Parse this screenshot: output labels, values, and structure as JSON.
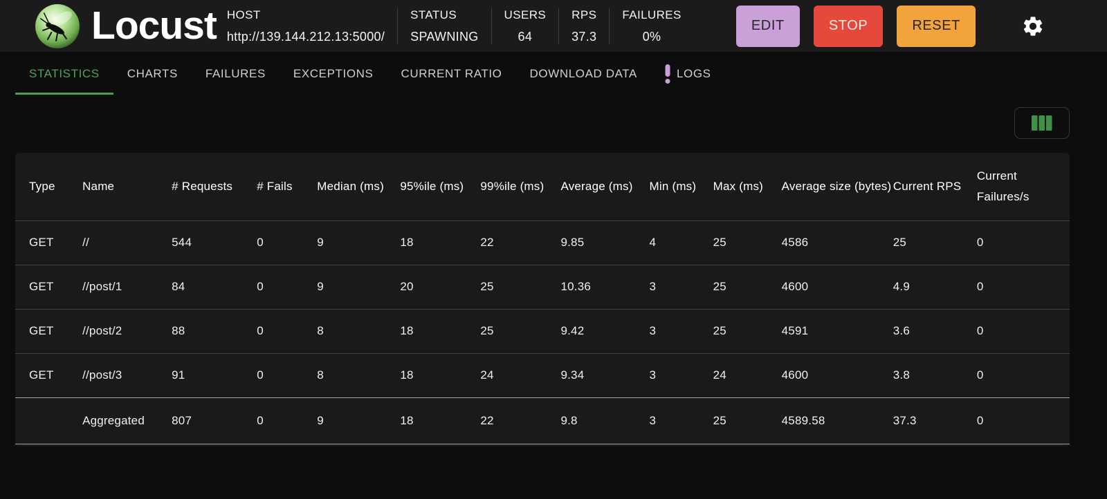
{
  "colors": {
    "accent_green": "#55a05a",
    "icon_green": "#3f9146",
    "edit_purple": "#c9a0d8",
    "stop_red": "#e5493c",
    "reset_orange": "#f2a33c",
    "logs_badge_purple": "#c9a0d8",
    "header_background": "#1b1b1b",
    "page_background": "#0d0d0d",
    "table_background": "#1a1a1a"
  },
  "header": {
    "app_title": "Locust",
    "logo_icon": "locust-logo",
    "settings_icon": "gear-icon",
    "stats": {
      "host": {
        "label": "HOST",
        "value": "http://139.144.212.13:5000/"
      },
      "status": {
        "label": "STATUS",
        "value": "SPAWNING"
      },
      "users": {
        "label": "USERS",
        "value": "64"
      },
      "rps": {
        "label": "RPS",
        "value": "37.3"
      },
      "failures": {
        "label": "FAILURES",
        "value": "0%"
      }
    },
    "buttons": {
      "edit": "EDIT",
      "stop": "STOP",
      "reset": "RESET"
    }
  },
  "tabs": [
    {
      "label": "STATISTICS",
      "active": true,
      "badge": null
    },
    {
      "label": "CHARTS",
      "active": false,
      "badge": null
    },
    {
      "label": "FAILURES",
      "active": false,
      "badge": null
    },
    {
      "label": "EXCEPTIONS",
      "active": false,
      "badge": null
    },
    {
      "label": "CURRENT RATIO",
      "active": false,
      "badge": null
    },
    {
      "label": "DOWNLOAD DATA",
      "active": false,
      "badge": null
    },
    {
      "label": "LOGS",
      "active": false,
      "badge": "!"
    }
  ],
  "toolbar": {
    "column_selector_icon": "columns-icon"
  },
  "table": {
    "columns": [
      "Type",
      "Name",
      "# Requests",
      "# Fails",
      "Median (ms)",
      "95%ile (ms)",
      "99%ile (ms)",
      "Average (ms)",
      "Min (ms)",
      "Max (ms)",
      "Average size (bytes)",
      "Current RPS",
      "Current Failures/s"
    ],
    "rows": [
      [
        "GET",
        "//",
        "544",
        "0",
        "9",
        "18",
        "22",
        "9.85",
        "4",
        "25",
        "4586",
        "25",
        "0"
      ],
      [
        "GET",
        "//post/1",
        "84",
        "0",
        "9",
        "20",
        "25",
        "10.36",
        "3",
        "25",
        "4600",
        "4.9",
        "0"
      ],
      [
        "GET",
        "//post/2",
        "88",
        "0",
        "8",
        "18",
        "25",
        "9.42",
        "3",
        "25",
        "4591",
        "3.6",
        "0"
      ],
      [
        "GET",
        "//post/3",
        "91",
        "0",
        "8",
        "18",
        "24",
        "9.34",
        "3",
        "24",
        "4600",
        "3.8",
        "0"
      ]
    ],
    "total_row": [
      "",
      "Aggregated",
      "807",
      "0",
      "9",
      "18",
      "22",
      "9.8",
      "3",
      "25",
      "4589.58",
      "37.3",
      "0"
    ]
  }
}
